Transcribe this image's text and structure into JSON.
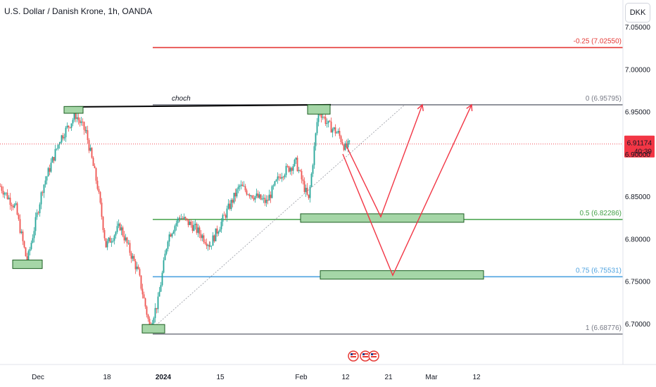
{
  "header": {
    "title": "U.S. Dollar / Danish Krone, 1h, OANDA",
    "currency_button": "DKK"
  },
  "colors": {
    "up_candle": "#26a69a",
    "down_candle": "#ef5350",
    "fib_neg025": "#e53935",
    "fib_0": "#787b86",
    "fib_05": "#43a047",
    "fib_075": "#4fa3e0",
    "fib_1": "#787b86",
    "zone_fill": "#a5d6a7",
    "arrow": "#f23645",
    "last_price_bg": "#f23645"
  },
  "chart_data": {
    "type": "candlestick",
    "symbol": "USDDKK",
    "timeframe": "1h",
    "ylim": [
      6.665,
      7.06
    ],
    "y_ticks": [
      6.7,
      6.75,
      6.8,
      6.85,
      6.9,
      6.95,
      7.0,
      7.05
    ],
    "y_tick_labels": [
      "6.70000",
      "6.75000",
      "6.80000",
      "6.85000",
      "6.90000",
      "6.95000",
      "7.00000",
      "7.05000"
    ],
    "x_ticks": [
      {
        "label": "Dec",
        "bold": false
      },
      {
        "label": "18",
        "bold": false
      },
      {
        "label": "2024",
        "bold": true
      },
      {
        "label": "15",
        "bold": false
      },
      {
        "label": "Feb",
        "bold": false
      },
      {
        "label": "12",
        "bold": false
      },
      {
        "label": "21",
        "bold": false
      },
      {
        "label": "Mar",
        "bold": false
      },
      {
        "label": "12",
        "bold": false
      }
    ],
    "last_price": {
      "value": 6.91174,
      "label": "6.91174",
      "countdown": "40:39"
    },
    "fib_levels": [
      {
        "level": "-0.25",
        "price": 7.0255,
        "label": "-0.25 (7.02550)",
        "color": "#e53935"
      },
      {
        "level": "0",
        "price": 6.95795,
        "label": "0 (6.95795)",
        "color": "#787b86"
      },
      {
        "level": "0.5",
        "price": 6.82286,
        "label": "0.5 (6.82286)",
        "color": "#43a047"
      },
      {
        "level": "0.75",
        "price": 6.75531,
        "label": "0.75 (6.75531)",
        "color": "#4fa3e0"
      },
      {
        "level": "1",
        "price": 6.68776,
        "label": "1 (6.68776)",
        "color": "#787b86"
      }
    ],
    "annotations": {
      "choch_label": "choch",
      "choch_level": 6.955,
      "demand_zones": [
        {
          "name": "zone-0.5",
          "low": 6.8195,
          "high": 6.8295
        },
        {
          "name": "zone-0.75",
          "low": 6.7525,
          "high": 6.7625
        }
      ],
      "swing_boxes": [
        {
          "name": "dec-low-box",
          "low": 6.765,
          "high": 6.775
        },
        {
          "name": "dec-high-box",
          "low": 6.948,
          "high": 6.956
        },
        {
          "name": "jan-low-box",
          "low": 6.689,
          "high": 6.699
        },
        {
          "name": "feb-high-box",
          "low": 6.947,
          "high": 6.958
        }
      ],
      "projection_paths": [
        {
          "name": "path-to-0.5",
          "prices": [
            6.908,
            6.826,
            6.958
          ]
        },
        {
          "name": "path-to-0.75",
          "prices": [
            6.9,
            6.757,
            6.958
          ]
        }
      ]
    },
    "swing_points": [
      {
        "t": 0,
        "p": 6.862
      },
      {
        "t": 22,
        "p": 6.836
      },
      {
        "t": 38,
        "p": 6.772
      },
      {
        "t": 60,
        "p": 6.86
      },
      {
        "t": 85,
        "p": 6.918
      },
      {
        "t": 107,
        "p": 6.946
      },
      {
        "t": 122,
        "p": 6.925
      },
      {
        "t": 138,
        "p": 6.862
      },
      {
        "t": 150,
        "p": 6.792
      },
      {
        "t": 170,
        "p": 6.815
      },
      {
        "t": 196,
        "p": 6.76
      },
      {
        "t": 212,
        "p": 6.697
      },
      {
        "t": 224,
        "p": 6.726
      },
      {
        "t": 238,
        "p": 6.802
      },
      {
        "t": 255,
        "p": 6.826
      },
      {
        "t": 275,
        "p": 6.814
      },
      {
        "t": 298,
        "p": 6.793
      },
      {
        "t": 318,
        "p": 6.826
      },
      {
        "t": 340,
        "p": 6.862
      },
      {
        "t": 358,
        "p": 6.852
      },
      {
        "t": 378,
        "p": 6.843
      },
      {
        "t": 398,
        "p": 6.876
      },
      {
        "t": 420,
        "p": 6.89
      },
      {
        "t": 438,
        "p": 6.845
      },
      {
        "t": 452,
        "p": 6.953
      },
      {
        "t": 466,
        "p": 6.934
      },
      {
        "t": 480,
        "p": 6.924
      },
      {
        "t": 490,
        "p": 6.907
      },
      {
        "t": 498,
        "p": 6.912
      }
    ]
  }
}
